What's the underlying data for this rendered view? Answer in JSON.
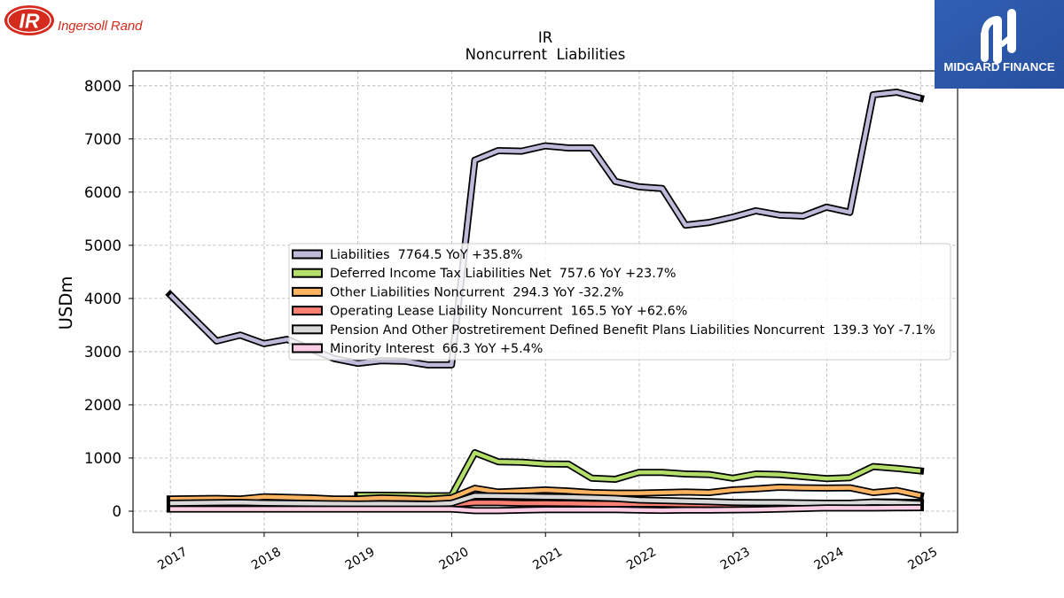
{
  "header": {
    "company_logo": {
      "mark": "IR",
      "name": "Ingersoll Rand",
      "color": "#d52b1e"
    },
    "publisher_logo": {
      "name": "MIDGARD FINANCE",
      "background": "#2c59a9",
      "text_color": "#ffffff"
    }
  },
  "chart_data": {
    "type": "line",
    "title": "IR",
    "subtitle": "Noncurrent  Liabilities",
    "ylabel": "USDm",
    "x_tick_labels": [
      "2017",
      "2018",
      "2019",
      "2020",
      "2021",
      "2022",
      "2023",
      "2024",
      "2025"
    ],
    "y_tick_labels": [
      "0",
      "1000",
      "2000",
      "3000",
      "4000",
      "5000",
      "6000",
      "7000",
      "8000"
    ],
    "xlim": [
      "2016-08-08",
      "2025-05-25"
    ],
    "ylim": [
      -400,
      8280
    ],
    "grid": true,
    "legend_position": "center right",
    "x": [
      "2016-12-31",
      "2017-06-30",
      "2017-09-30",
      "2017-12-31",
      "2018-03-31",
      "2018-06-30",
      "2018-09-30",
      "2018-12-31",
      "2019-03-31",
      "2019-06-30",
      "2019-09-30",
      "2019-12-31",
      "2020-03-31",
      "2020-06-30",
      "2020-09-30",
      "2020-12-31",
      "2021-03-31",
      "2021-06-30",
      "2021-09-30",
      "2021-12-31",
      "2022-03-31",
      "2022-06-30",
      "2022-09-30",
      "2022-12-31",
      "2023-03-31",
      "2023-06-30",
      "2023-09-30",
      "2023-12-31",
      "2024-03-31",
      "2024-06-30",
      "2024-09-30",
      "2024-12-31"
    ],
    "series": [
      {
        "name": "Liabilities",
        "legend_suffix": "  7764.5 YoY +35.8%",
        "color": "#bebada",
        "values": [
          4070,
          3200,
          3310,
          3150,
          3230,
          3050,
          2870,
          2780,
          2830,
          2820,
          2750,
          2750,
          6600,
          6780,
          6770,
          6870,
          6830,
          6830,
          6200,
          6100,
          6070,
          5380,
          5430,
          5530,
          5650,
          5570,
          5550,
          5717.6,
          5620,
          7830,
          7880,
          7764.5
        ]
      },
      {
        "name": "Deferred Income Tax Liabilities Net",
        "legend_suffix": "  757.6 YoY +23.7%",
        "color": "#b3de69",
        "values": [
          null,
          null,
          null,
          null,
          null,
          null,
          null,
          300,
          300,
          295,
          290,
          290,
          1100,
          930,
          920,
          890,
          885,
          620,
          600,
          730,
          730,
          700,
          690,
          620,
          700,
          690,
          650,
          612.4,
          630,
          840,
          805,
          757.6
        ]
      },
      {
        "name": "Other Liabilities Noncurrent",
        "legend_suffix": "  294.3 YoY -32.2%",
        "color": "#fdb462",
        "values": [
          230,
          240,
          230,
          270,
          260,
          250,
          230,
          230,
          250,
          240,
          220,
          250,
          430,
          360,
          380,
          400,
          380,
          350,
          340,
          340,
          350,
          360,
          350,
          400,
          420,
          450,
          440,
          434.1,
          440,
          350,
          390,
          294.3
        ]
      },
      {
        "name": "Operating Lease Liability Noncurrent",
        "legend_suffix": "  165.5 YoY +62.6%",
        "color": "#fb8072",
        "values": [
          null,
          null,
          null,
          null,
          null,
          null,
          null,
          null,
          140,
          140,
          135,
          130,
          160,
          160,
          150,
          150,
          145,
          140,
          135,
          140,
          135,
          130,
          125,
          120,
          115,
          110,
          105,
          101.8,
          110,
          175,
          170,
          165.5
        ]
      },
      {
        "name": "Pension And Other Postretirement Defined Benefit Plans Liabilities Noncurrent",
        "legend_suffix": "  139.3 YoY -7.1%",
        "color": "#d9d9d9",
        "values": [
          150,
          160,
          165,
          155,
          150,
          145,
          140,
          135,
          140,
          135,
          130,
          150,
          290,
          285,
          280,
          270,
          265,
          255,
          240,
          210,
          200,
          190,
          180,
          165,
          160,
          160,
          155,
          149.9,
          150,
          170,
          160,
          139.3
        ]
      },
      {
        "name": "Minority Interest",
        "legend_suffix": "  66.3 YoY +5.4%",
        "color": "#fccde5",
        "values": [
          40,
          40,
          40,
          40,
          40,
          40,
          40,
          40,
          40,
          40,
          40,
          40,
          10,
          10,
          20,
          30,
          30,
          30,
          30,
          20,
          15,
          20,
          20,
          25,
          30,
          40,
          50,
          62.9,
          60,
          60,
          65,
          66.3
        ]
      }
    ]
  }
}
